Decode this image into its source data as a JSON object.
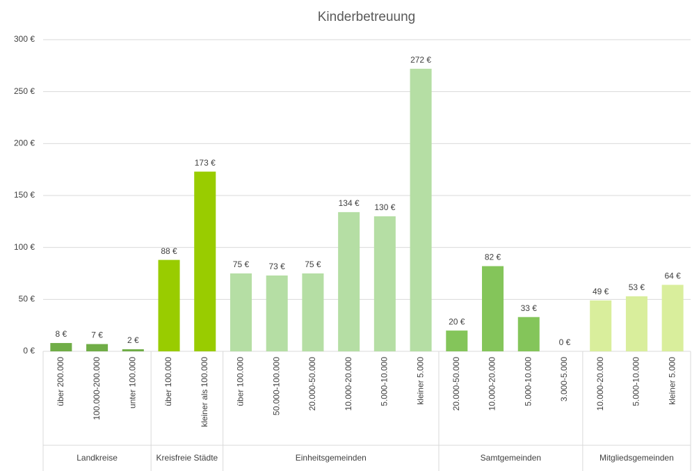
{
  "chart_data": {
    "type": "bar",
    "title": "Kinderbetreuung",
    "ylim": [
      0,
      300
    ],
    "yticks": [
      {
        "value": 0,
        "label": "0 €"
      },
      {
        "value": 50,
        "label": "50 €"
      },
      {
        "value": 100,
        "label": "100 €"
      },
      {
        "value": 150,
        "label": "150 €"
      },
      {
        "value": 200,
        "label": "200 €"
      },
      {
        "value": 250,
        "label": "250 €"
      },
      {
        "value": 300,
        "label": "300 €"
      }
    ],
    "grid": true,
    "groups": [
      {
        "name": "Landkreise",
        "color": "#70ad47",
        "categories": [
          "über 200.000",
          "100.000-200.000",
          "unter 100.000"
        ],
        "values": [
          8,
          7,
          2
        ],
        "value_labels": [
          "8 €",
          "7 €",
          "2 €"
        ]
      },
      {
        "name": "Kreisfreie Städte",
        "color": "#99cc00",
        "categories": [
          "über 100.000",
          "kleiner als 100.000"
        ],
        "values": [
          88,
          173
        ],
        "value_labels": [
          "88 €",
          "173 €"
        ]
      },
      {
        "name": "Einheitsgemeinden",
        "color": "#b5dea4",
        "categories": [
          "über 100.000",
          "50.000-100.000",
          "20.000-50.000",
          "10.000-20.000",
          "5.000-10.000",
          "kleiner 5.000"
        ],
        "values": [
          75,
          73,
          75,
          134,
          130,
          272
        ],
        "value_labels": [
          "75 €",
          "73 €",
          "75 €",
          "134 €",
          "130 €",
          "272 €"
        ]
      },
      {
        "name": "Samtgemeinden",
        "color": "#84c55a",
        "categories": [
          "20.000-50.000",
          "10.000-20.000",
          "5.000-10.000",
          "3.000-5.000"
        ],
        "values": [
          20,
          82,
          33,
          0
        ],
        "value_labels": [
          "20 €",
          "82 €",
          "33 €",
          "0 €"
        ]
      },
      {
        "name": "Mitgliedsgemeinden",
        "color": "#d9ee9c",
        "categories": [
          "10.000-20.000",
          "5.000-10.000",
          "kleiner 5.000"
        ],
        "values": [
          49,
          53,
          64
        ],
        "value_labels": [
          "49 €",
          "53 €",
          "64 €"
        ]
      }
    ]
  }
}
